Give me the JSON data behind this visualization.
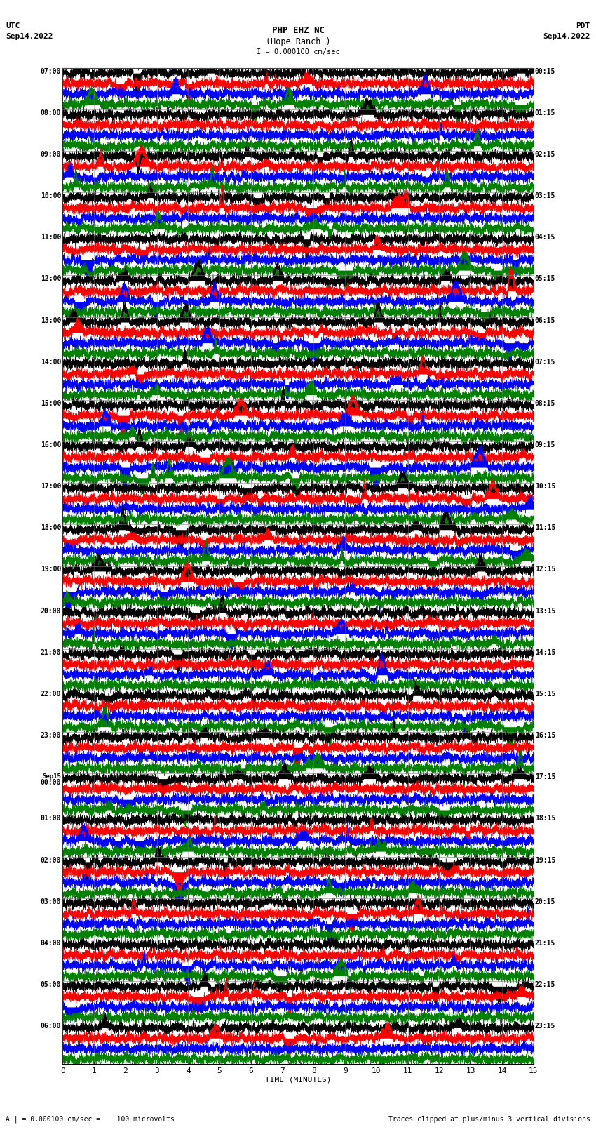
{
  "title_line1": "PHP EHZ NC",
  "title_line2": "(Hope Ranch )",
  "scale_label": "I = 0.000100 cm/sec",
  "utc_times": [
    "07:00",
    "08:00",
    "09:00",
    "10:00",
    "11:00",
    "12:00",
    "13:00",
    "14:00",
    "15:00",
    "16:00",
    "17:00",
    "18:00",
    "19:00",
    "20:00",
    "21:00",
    "22:00",
    "23:00",
    "Sep15\n00:00",
    "01:00",
    "02:00",
    "03:00",
    "04:00",
    "05:00",
    "06:00"
  ],
  "pdt_times": [
    "00:15",
    "01:15",
    "02:15",
    "03:15",
    "04:15",
    "05:15",
    "06:15",
    "07:15",
    "08:15",
    "09:15",
    "10:15",
    "11:15",
    "12:15",
    "13:15",
    "14:15",
    "15:15",
    "16:15",
    "17:15",
    "18:15",
    "19:15",
    "20:15",
    "21:15",
    "22:15",
    "23:15"
  ],
  "n_rows": 24,
  "n_channels": 4,
  "time_minutes": 15,
  "colors": [
    "black",
    "red",
    "blue",
    "green"
  ],
  "bg_color": "white",
  "xlabel": "TIME (MINUTES)",
  "footer_left": "A | = 0.000100 cm/sec =    100 microvolts",
  "footer_right": "Traces clipped at plus/minus 3 vertical divisions",
  "seed": 12345
}
